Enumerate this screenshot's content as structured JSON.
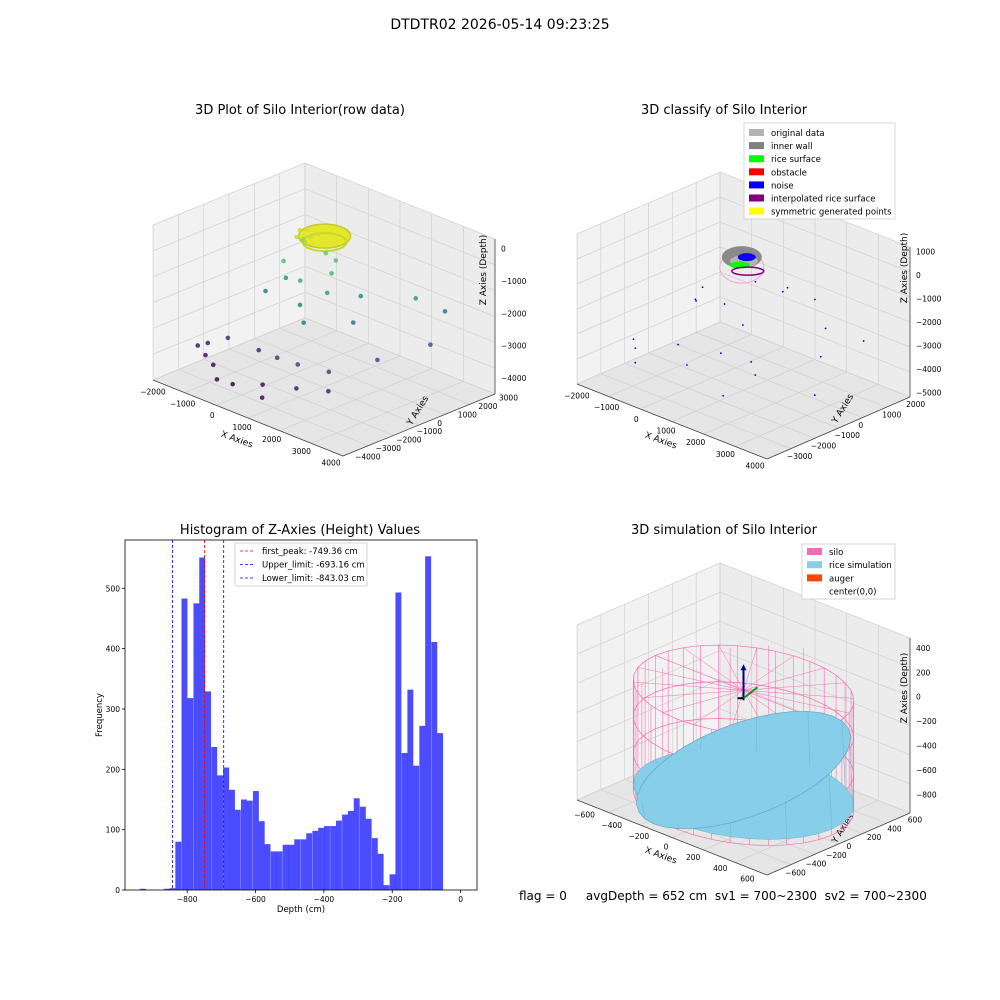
{
  "figure": {
    "suptitle": "DTDTR02 2026-05-14 09:23:25",
    "footer": "flag = 0     avgDepth = 652 cm  sv1 = 700~2300  sv2 = 700~2300"
  },
  "chart_data": [
    {
      "type": "scatter",
      "title": "3D Plot of Silo Interior(row data)",
      "xlabel": "X Axies",
      "ylabel": "Y Axies",
      "zlabel": "Z Axies (Depth)",
      "xticks": [
        "−2000",
        "−1000",
        "0",
        "1000",
        "2000",
        "3000",
        "4000"
      ],
      "yticks": [
        "−4000",
        "−3000",
        "−2000",
        "−1000",
        "0",
        "1000",
        "2000",
        "3000"
      ],
      "zticks": [
        "0",
        "−1000",
        "−2000",
        "−3000",
        "−4000"
      ],
      "xlim": [
        -2200,
        4200
      ],
      "ylim": [
        -4200,
        3200
      ],
      "zlim": [
        -4500,
        300
      ],
      "colormap": "viridis",
      "points": [
        {
          "x": -300,
          "y": 200,
          "z": -300
        },
        {
          "x": -100,
          "y": 300,
          "z": -250
        },
        {
          "x": 100,
          "y": 150,
          "z": -350
        },
        {
          "x": 200,
          "y": 400,
          "z": -300
        },
        {
          "x": -200,
          "y": -100,
          "z": -400
        },
        {
          "x": 0,
          "y": 0,
          "z": -500
        },
        {
          "x": -400,
          "y": 500,
          "z": -700
        },
        {
          "x": 300,
          "y": 600,
          "z": -900
        },
        {
          "x": 500,
          "y": 800,
          "z": -1100
        },
        {
          "x": 700,
          "y": 300,
          "z": -1300
        },
        {
          "x": -500,
          "y": -300,
          "z": -1200
        },
        {
          "x": 200,
          "y": -500,
          "z": -1500
        },
        {
          "x": 900,
          "y": -200,
          "z": -1700
        },
        {
          "x": -700,
          "y": 100,
          "z": -1900
        },
        {
          "x": 400,
          "y": -800,
          "z": -2100
        },
        {
          "x": 1200,
          "y": 1000,
          "z": -2000
        },
        {
          "x": -900,
          "y": -600,
          "z": -2200
        },
        {
          "x": 800,
          "y": -1200,
          "z": -2400
        },
        {
          "x": 1500,
          "y": 200,
          "z": -2500
        },
        {
          "x": 2500,
          "y": 1800,
          "z": -1800
        },
        {
          "x": 3000,
          "y": 2500,
          "z": -2200
        },
        {
          "x": 3200,
          "y": 1500,
          "z": -2900
        },
        {
          "x": 2800,
          "y": -500,
          "z": -3000
        },
        {
          "x": 2200,
          "y": -2000,
          "z": -3200
        },
        {
          "x": 1500,
          "y": -2500,
          "z": -3100
        },
        {
          "x": 600,
          "y": -2200,
          "z": -3300
        },
        {
          "x": -300,
          "y": -1800,
          "z": -3500
        },
        {
          "x": -1200,
          "y": -2000,
          "z": -3400
        },
        {
          "x": -1600,
          "y": -2400,
          "z": -3600
        },
        {
          "x": -1800,
          "y": -2600,
          "z": -3700
        },
        {
          "x": -1400,
          "y": -2800,
          "z": -3800
        },
        {
          "x": -1000,
          "y": -3000,
          "z": -3900
        },
        {
          "x": 0,
          "y": -3500,
          "z": -4000
        },
        {
          "x": 800,
          "y": -3200,
          "z": -3800
        },
        {
          "x": 1800,
          "y": -3000,
          "z": -3600
        },
        {
          "x": 2600,
          "y": -2600,
          "z": -3500
        },
        {
          "x": -600,
          "y": -3400,
          "z": -4100
        },
        {
          "x": 1200,
          "y": -3800,
          "z": -3900
        }
      ]
    },
    {
      "type": "scatter",
      "title": "3D classify of Silo Interior",
      "xlabel": "X Axies",
      "ylabel": "Y Axies",
      "zlabel": "Z Axies (Depth)",
      "xticks": [
        "−2000",
        "−1000",
        "0",
        "1000",
        "2000",
        "3000",
        "4000"
      ],
      "yticks": [
        "−3000",
        "−2000",
        "−1000",
        "0",
        "1000",
        "2000"
      ],
      "zticks": [
        "−5000",
        "−4000",
        "−3000",
        "−2000",
        "−1000",
        "0",
        "1000"
      ],
      "xlim": [
        -2200,
        4200
      ],
      "ylim": [
        -3500,
        2500
      ],
      "zlim": [
        -5200,
        1200
      ],
      "legend_position": "upper right",
      "legend": [
        {
          "label": "original data",
          "color": "#b3b3b3"
        },
        {
          "label": "inner wall",
          "color": "#808080"
        },
        {
          "label": "rice surface",
          "color": "#00ff00"
        },
        {
          "label": "obstacle",
          "color": "#ff0000"
        },
        {
          "label": "noise",
          "color": "#0000ff"
        },
        {
          "label": "interpolated rice surface",
          "color": "#800080"
        },
        {
          "label": "symmetric generated points",
          "color": "#ffff00"
        }
      ],
      "noise_points": [
        {
          "x": -1500,
          "y": -2000,
          "z": -3600
        },
        {
          "x": -1200,
          "y": -2300,
          "z": -3700
        },
        {
          "x": -800,
          "y": -2800,
          "z": -3900
        },
        {
          "x": -400,
          "y": -1500,
          "z": -3500
        },
        {
          "x": 300,
          "y": -2000,
          "z": -3800
        },
        {
          "x": 800,
          "y": -1200,
          "z": -3400
        },
        {
          "x": 1500,
          "y": -800,
          "z": -3600
        },
        {
          "x": 2200,
          "y": -1500,
          "z": -3500
        },
        {
          "x": 2800,
          "y": 500,
          "z": -3300
        },
        {
          "x": 3200,
          "y": 1800,
          "z": -3000
        },
        {
          "x": 1800,
          "y": 1500,
          "z": -1800
        },
        {
          "x": 1200,
          "y": 900,
          "z": -1500
        },
        {
          "x": 600,
          "y": 500,
          "z": -1200
        },
        {
          "x": -300,
          "y": -600,
          "z": -1400
        },
        {
          "x": -700,
          "y": -400,
          "z": -2200
        },
        {
          "x": -1000,
          "y": 0,
          "z": -2600
        },
        {
          "x": 200,
          "y": -300,
          "z": -2000
        },
        {
          "x": 900,
          "y": -400,
          "z": -2500
        },
        {
          "x": 1600,
          "y": 600,
          "z": -1000
        },
        {
          "x": 2400,
          "y": 1200,
          "z": -2600
        },
        {
          "x": 3400,
          "y": -500,
          "z": -4200
        },
        {
          "x": 2000,
          "y": -2600,
          "z": -4000
        }
      ]
    },
    {
      "type": "bar",
      "title": "Histogram of Z-Axies (Height) Values",
      "xlabel": "Depth (cm)",
      "ylabel": "Frequency",
      "xlim": [
        -982,
        48
      ],
      "ylim": [
        0,
        580
      ],
      "xticks": [
        -800,
        -600,
        -400,
        -200,
        0
      ],
      "yticks": [
        0,
        100,
        200,
        300,
        400,
        500
      ],
      "bin_width": 17.4,
      "color": "#0000ff",
      "bins": [
        {
          "x": -930,
          "count": 2
        },
        {
          "x": -860,
          "count": 2
        },
        {
          "x": -843,
          "count": 3
        },
        {
          "x": -826,
          "count": 80
        },
        {
          "x": -808,
          "count": 483
        },
        {
          "x": -791,
          "count": 318
        },
        {
          "x": -773,
          "count": 475
        },
        {
          "x": -756,
          "count": 551
        },
        {
          "x": -739,
          "count": 329
        },
        {
          "x": -721,
          "count": 237
        },
        {
          "x": -704,
          "count": 190
        },
        {
          "x": -686,
          "count": 203
        },
        {
          "x": -669,
          "count": 166
        },
        {
          "x": -652,
          "count": 133
        },
        {
          "x": -634,
          "count": 150
        },
        {
          "x": -617,
          "count": 148
        },
        {
          "x": -599,
          "count": 164
        },
        {
          "x": -582,
          "count": 114
        },
        {
          "x": -565,
          "count": 76
        },
        {
          "x": -547,
          "count": 64
        },
        {
          "x": -530,
          "count": 64
        },
        {
          "x": -512,
          "count": 75
        },
        {
          "x": -495,
          "count": 75
        },
        {
          "x": -478,
          "count": 84
        },
        {
          "x": -460,
          "count": 84
        },
        {
          "x": -443,
          "count": 94
        },
        {
          "x": -425,
          "count": 98
        },
        {
          "x": -408,
          "count": 103
        },
        {
          "x": -391,
          "count": 106
        },
        {
          "x": -373,
          "count": 106
        },
        {
          "x": -356,
          "count": 115
        },
        {
          "x": -338,
          "count": 125
        },
        {
          "x": -321,
          "count": 131
        },
        {
          "x": -304,
          "count": 152
        },
        {
          "x": -286,
          "count": 138
        },
        {
          "x": -269,
          "count": 118
        },
        {
          "x": -251,
          "count": 86
        },
        {
          "x": -234,
          "count": 60
        },
        {
          "x": -217,
          "count": 8
        },
        {
          "x": -199,
          "count": 26
        },
        {
          "x": -182,
          "count": 493
        },
        {
          "x": -164,
          "count": 227
        },
        {
          "x": -147,
          "count": 332
        },
        {
          "x": -130,
          "count": 206
        },
        {
          "x": -112,
          "count": 272
        },
        {
          "x": -95,
          "count": 553
        },
        {
          "x": -77,
          "count": 411
        },
        {
          "x": -60,
          "count": 260
        }
      ],
      "vlines": [
        {
          "label": "first_peak: -749.36 cm",
          "x": -749.36,
          "color": "#ff0000"
        },
        {
          "label": "Upper_limit: -693.16 cm",
          "x": -693.16,
          "color": "#0000ff"
        },
        {
          "label": "Lower_limit: -843.03 cm",
          "x": -843.03,
          "color": "#0000ff"
        }
      ]
    },
    {
      "type": "area",
      "title": "3D simulation of Silo Interior",
      "xlabel": "X Axies",
      "ylabel": "Y Axies",
      "zlabel": "Z Axies (Depth)",
      "xticks": [
        "−600",
        "−400",
        "−200",
        "0",
        "200",
        "400",
        "600"
      ],
      "yticks": [
        "−600",
        "−400",
        "−200",
        "0",
        "200",
        "400",
        "600"
      ],
      "zticks": [
        "−800",
        "−600",
        "−400",
        "−200",
        "0",
        "200",
        "400"
      ],
      "xlim": [
        -700,
        700
      ],
      "ylim": [
        -700,
        700
      ],
      "zlim": [
        -950,
        480
      ],
      "legend_position": "upper right",
      "legend": [
        {
          "label": "silo",
          "color": "#ff69b4"
        },
        {
          "label": "rice simulation",
          "color": "#87ceeb"
        },
        {
          "label": "auger",
          "color": "#ff4500"
        },
        {
          "label": "center(0,0)",
          "color": ""
        }
      ],
      "silo_radius": 650,
      "silo_top": 0,
      "silo_bottom": -900,
      "rice_depth": -652
    }
  ]
}
